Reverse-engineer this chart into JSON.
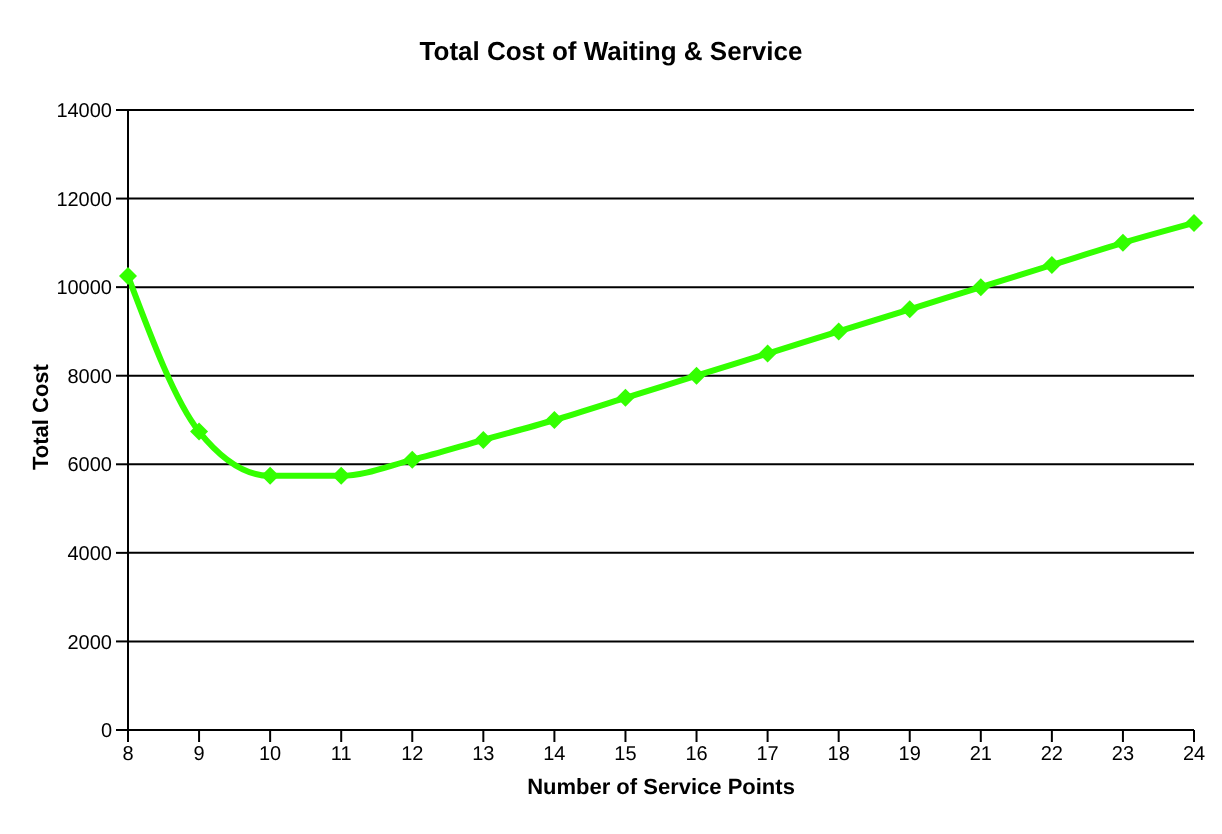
{
  "chart_data": {
    "type": "line",
    "title": "Total Cost of Waiting & Service",
    "xlabel": "Number of Service Points",
    "ylabel": "Total Cost",
    "categories": [
      "8",
      "9",
      "10",
      "11",
      "12",
      "13",
      "14",
      "15",
      "16",
      "17",
      "18",
      "19",
      "21",
      "22",
      "23",
      "24"
    ],
    "series": [
      {
        "color": "#33ff00",
        "values": [
          10250,
          6740,
          5740,
          5740,
          6100,
          6550,
          7000,
          7500,
          8000,
          8500,
          9000,
          9500,
          10000,
          10500,
          11000,
          11450
        ]
      }
    ],
    "ylim": [
      0,
      14000
    ],
    "yticks": [
      0,
      2000,
      4000,
      6000,
      8000,
      10000,
      12000,
      14000
    ],
    "grid": "y",
    "marker": "diamond",
    "line_style": "solid",
    "legend": false
  }
}
